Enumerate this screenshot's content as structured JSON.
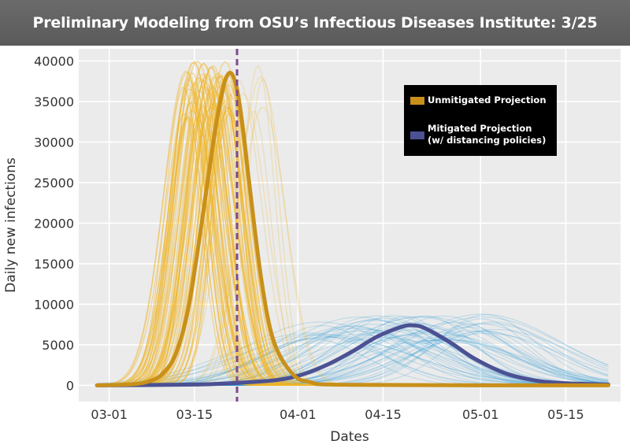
{
  "header": {
    "title": "Preliminary Modeling from OSU’s Infectious Diseases Institute: 3/25"
  },
  "colors": {
    "unmitigated": "#f0b323",
    "unmitigated_dark": "#c8901a",
    "mitigated_spread": "#2e9ad6",
    "mitigated_line": "#4b5193",
    "marker_line": "#7a4b8f",
    "title_bar": "#646464",
    "plot_background": "#ebebeb",
    "grid": "#ffffff"
  },
  "chart_data": {
    "type": "line",
    "title": "Preliminary Modeling from OSU’s Infectious Diseases Institute: 3/25",
    "xlabel": "Dates",
    "ylabel": "Daily new infections",
    "x_ticks": [
      "03-01",
      "03-15",
      "04-01",
      "04-15",
      "05-01",
      "05-15"
    ],
    "y_ticks": [
      0,
      5000,
      10000,
      15000,
      20000,
      25000,
      30000,
      35000,
      40000
    ],
    "ylim": [
      -2000,
      41500
    ],
    "xlim": [
      "2020-02-25",
      "2020-05-24"
    ],
    "grid": true,
    "legend_position": "top-right",
    "marker": {
      "date": "2020-03-22",
      "style": "dashed vertical line"
    },
    "series": [
      {
        "name": "Unmitigated Projection",
        "x": [
          "2020-02-28",
          "2020-03-05",
          "2020-03-08",
          "2020-03-10",
          "2020-03-12",
          "2020-03-14",
          "2020-03-16",
          "2020-03-18",
          "2020-03-19",
          "2020-03-20",
          "2020-03-21",
          "2020-03-22",
          "2020-03-23",
          "2020-03-24",
          "2020-03-26",
          "2020-03-28",
          "2020-03-31",
          "2020-04-03",
          "2020-04-10",
          "2020-05-22"
        ],
        "values": [
          0,
          150,
          600,
          1600,
          4000,
          9500,
          19000,
          29500,
          34000,
          37500,
          38500,
          36500,
          31500,
          25000,
          13000,
          5500,
          1500,
          400,
          60,
          0
        ]
      },
      {
        "name": "Mitigated Projection\n(w/ distancing policies)",
        "x": [
          "2020-02-28",
          "2020-03-15",
          "2020-03-22",
          "2020-03-29",
          "2020-04-02",
          "2020-04-06",
          "2020-04-10",
          "2020-04-14",
          "2020-04-18",
          "2020-04-20",
          "2020-04-22",
          "2020-04-26",
          "2020-04-30",
          "2020-05-05",
          "2020-05-10",
          "2020-05-15",
          "2020-05-22"
        ],
        "values": [
          0,
          100,
          300,
          700,
          1400,
          2600,
          4200,
          6000,
          7200,
          7400,
          7000,
          5300,
          3300,
          1500,
          600,
          250,
          100
        ]
      }
    ]
  }
}
